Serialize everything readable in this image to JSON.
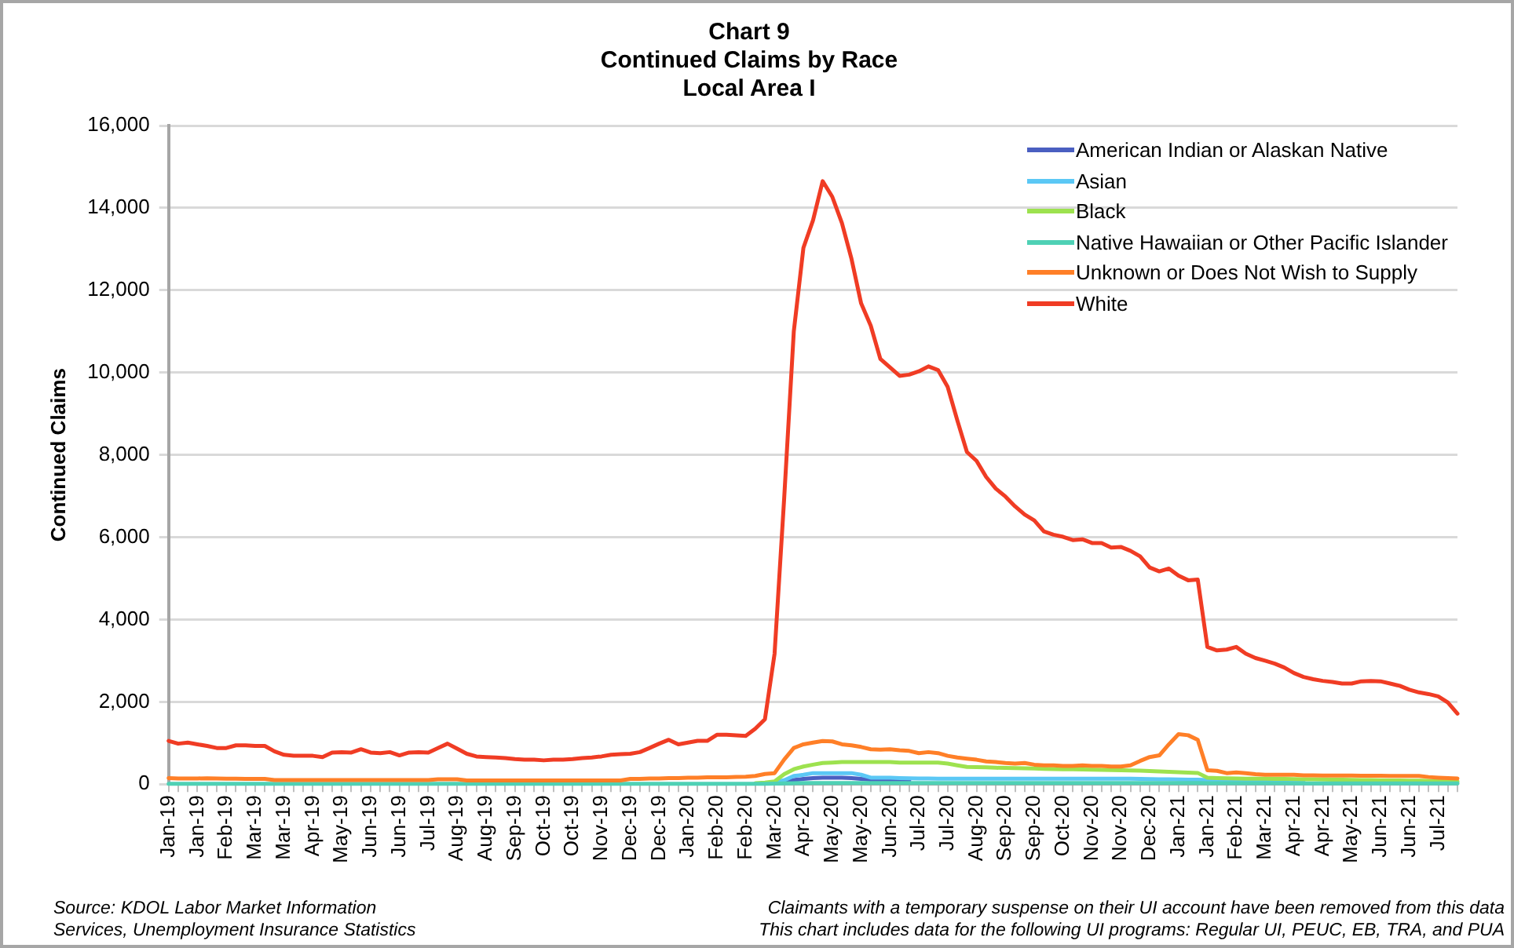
{
  "chart_data": {
    "type": "line",
    "title": "Chart 9\nContinued Claims by Race\nLocal Area I",
    "ylabel": "Continued Claims",
    "categories": [
      "Jan-19",
      null,
      null,
      "Jan-19",
      null,
      null,
      "Feb-19",
      null,
      null,
      "Mar-19",
      null,
      null,
      "Mar-19",
      null,
      null,
      "Apr-19",
      null,
      null,
      "May-19",
      null,
      null,
      "Jun-19",
      null,
      null,
      "Jun-19",
      null,
      null,
      "Jul-19",
      null,
      null,
      "Aug-19",
      null,
      null,
      "Aug-19",
      null,
      null,
      "Sep-19",
      null,
      null,
      "Oct-19",
      null,
      null,
      "Oct-19",
      null,
      null,
      "Nov-19",
      null,
      null,
      "Dec-19",
      null,
      null,
      "Dec-19",
      null,
      null,
      "Jan-20",
      null,
      null,
      "Feb-20",
      null,
      null,
      "Feb-20",
      null,
      null,
      "Mar-20",
      null,
      null,
      "Apr-20",
      null,
      null,
      "May-20",
      null,
      null,
      "May-20",
      null,
      null,
      "Jun-20",
      null,
      null,
      "Jul-20",
      null,
      null,
      "Jul-20",
      null,
      null,
      "Aug-20",
      null,
      null,
      "Sep-20",
      null,
      null,
      "Sep-20",
      null,
      null,
      "Oct-20",
      null,
      null,
      "Nov-20",
      null,
      null,
      "Nov-20",
      null,
      null,
      "Dec-20",
      null,
      null,
      "Jan-21",
      null,
      null,
      "Jan-21",
      null,
      null,
      "Feb-21",
      null,
      null,
      "Mar-21",
      null,
      null,
      "Apr-21",
      null,
      null,
      "Apr-21",
      null,
      null,
      "May-21",
      null,
      null,
      "Jun-21",
      null,
      null,
      "Jun-21",
      null,
      null,
      "Jul-21",
      null,
      null
    ],
    "series": [
      {
        "name": "American Indian or Alaskan Native",
        "color": "#4a5fc1",
        "values": [
          null,
          null,
          null,
          null,
          null,
          null,
          null,
          null,
          null,
          null,
          null,
          null,
          null,
          null,
          null,
          null,
          null,
          null,
          null,
          null,
          null,
          null,
          null,
          null,
          null,
          null,
          null,
          null,
          null,
          null,
          null,
          null,
          null,
          null,
          null,
          null,
          null,
          null,
          null,
          null,
          null,
          null,
          null,
          null,
          null,
          null,
          null,
          null,
          null,
          null,
          null,
          null,
          null,
          null,
          null,
          null,
          null,
          null,
          null,
          null,
          null,
          null,
          null,
          null,
          50,
          100,
          130,
          150,
          160,
          160,
          160,
          150,
          130,
          110,
          100,
          95,
          90,
          90,
          null,
          null,
          null,
          null,
          null,
          null,
          null,
          null,
          null,
          null,
          null,
          null,
          null,
          null,
          null,
          null,
          null,
          null,
          null,
          null,
          null,
          null,
          null,
          null,
          null,
          null,
          null,
          null,
          null,
          null,
          null,
          null,
          null,
          null,
          null,
          null,
          null,
          null,
          null,
          null,
          null,
          null,
          null,
          null,
          null,
          null,
          null,
          null,
          null,
          null,
          null,
          null,
          null,
          null,
          null,
          null,
          null
        ]
      },
      {
        "name": "Asian",
        "color": "#5bc8f5",
        "values": [
          null,
          null,
          null,
          null,
          null,
          null,
          null,
          null,
          null,
          null,
          null,
          null,
          null,
          null,
          null,
          null,
          null,
          null,
          null,
          null,
          null,
          null,
          null,
          null,
          null,
          null,
          null,
          null,
          null,
          null,
          null,
          null,
          null,
          null,
          null,
          null,
          null,
          null,
          null,
          null,
          null,
          null,
          null,
          null,
          null,
          null,
          null,
          null,
          null,
          null,
          null,
          null,
          null,
          null,
          null,
          null,
          null,
          null,
          null,
          null,
          null,
          null,
          30,
          50,
          95,
          200,
          230,
          270,
          270,
          270,
          270,
          270,
          230,
          160,
          160,
          160,
          150,
          145,
          140,
          140,
          135,
          135,
          135,
          135,
          135,
          135,
          135,
          135,
          135,
          135,
          135,
          135,
          135,
          135,
          135,
          135,
          135,
          135,
          135,
          135,
          135,
          130,
          125,
          120,
          120,
          115,
          110,
          110,
          100,
          95,
          95,
          95,
          95,
          95,
          95,
          95,
          95,
          95,
          90,
          null,
          null,
          null,
          null,
          null,
          null,
          null,
          null,
          null,
          null,
          null,
          null,
          null,
          null,
          null,
          null
        ]
      },
      {
        "name": "Black",
        "color": "#9de24f",
        "values": [
          null,
          null,
          null,
          null,
          null,
          null,
          null,
          null,
          null,
          null,
          null,
          null,
          null,
          null,
          null,
          null,
          null,
          null,
          null,
          null,
          null,
          null,
          null,
          null,
          null,
          null,
          null,
          null,
          null,
          null,
          null,
          null,
          null,
          null,
          null,
          null,
          null,
          null,
          null,
          null,
          null,
          null,
          null,
          null,
          null,
          null,
          null,
          null,
          null,
          null,
          null,
          null,
          null,
          null,
          null,
          null,
          null,
          null,
          null,
          null,
          null,
          25,
          40,
          70,
          245,
          365,
          430,
          475,
          515,
          525,
          540,
          540,
          540,
          540,
          540,
          540,
          525,
          525,
          525,
          525,
          525,
          500,
          460,
          420,
          415,
          410,
          400,
          395,
          390,
          385,
          380,
          375,
          370,
          365,
          365,
          360,
          355,
          350,
          345,
          340,
          335,
          330,
          320,
          310,
          300,
          290,
          280,
          275,
          160,
          150,
          145,
          140,
          135,
          135,
          135,
          130,
          130,
          125,
          120,
          120,
          115,
          110,
          110,
          105,
          100,
          100,
          95,
          90,
          90,
          85,
          85,
          80,
          75,
          70,
          70
        ]
      },
      {
        "name": "Native Hawaiian or Other Pacific Islander",
        "color": "#4fd1b5",
        "values": [
          10,
          10,
          10,
          10,
          10,
          10,
          10,
          10,
          10,
          10,
          10,
          10,
          10,
          10,
          10,
          10,
          10,
          10,
          10,
          10,
          10,
          10,
          10,
          10,
          10,
          10,
          10,
          10,
          10,
          10,
          10,
          10,
          10,
          10,
          10,
          10,
          10,
          10,
          10,
          10,
          10,
          10,
          10,
          10,
          10,
          10,
          10,
          10,
          10,
          10,
          10,
          10,
          10,
          10,
          10,
          10,
          10,
          10,
          10,
          10,
          10,
          10,
          10,
          15,
          20,
          25,
          30,
          30,
          30,
          30,
          30,
          30,
          30,
          30,
          30,
          30,
          30,
          30,
          30,
          30,
          30,
          30,
          30,
          30,
          30,
          30,
          30,
          30,
          30,
          30,
          30,
          30,
          30,
          30,
          30,
          30,
          30,
          30,
          30,
          30,
          30,
          30,
          30,
          30,
          30,
          30,
          30,
          30,
          25,
          25,
          25,
          25,
          25,
          25,
          25,
          25,
          25,
          20,
          20,
          20,
          20,
          20,
          20,
          20,
          20,
          20,
          20,
          20,
          20,
          20,
          20,
          20,
          20,
          20,
          20
        ]
      },
      {
        "name": "Unknown or Does Not Wish to Supply",
        "color": "#ff7f27",
        "values": [
          150,
          140,
          140,
          140,
          145,
          140,
          135,
          135,
          130,
          130,
          130,
          100,
          100,
          100,
          100,
          100,
          100,
          100,
          100,
          100,
          100,
          100,
          100,
          100,
          100,
          100,
          100,
          100,
          120,
          120,
          120,
          90,
          90,
          90,
          90,
          90,
          90,
          90,
          90,
          90,
          90,
          90,
          90,
          90,
          90,
          90,
          90,
          90,
          130,
          130,
          140,
          140,
          150,
          150,
          160,
          160,
          170,
          170,
          170,
          175,
          180,
          200,
          250,
          270,
          600,
          880,
          970,
          1010,
          1050,
          1040,
          970,
          945,
          905,
          850,
          840,
          850,
          825,
          810,
          755,
          780,
          755,
          690,
          650,
          620,
          595,
          555,
          540,
          515,
          500,
          515,
          475,
          460,
          460,
          445,
          445,
          460,
          445,
          445,
          430,
          430,
          460,
          565,
          660,
          700,
          970,
          1215,
          1190,
          1080,
          340,
          325,
          270,
          285,
          270,
          245,
          230,
          230,
          230,
          230,
          215,
          215,
          210,
          210,
          210,
          210,
          205,
          205,
          205,
          200,
          200,
          200,
          200,
          175,
          160,
          150,
          140
        ]
      },
      {
        "name": "White",
        "color": "#f03c24",
        "values": [
          1053,
          985,
          1010,
          970,
          930,
          880,
          880,
          945,
          945,
          930,
          930,
          800,
          715,
          690,
          690,
          690,
          660,
          770,
          780,
          770,
          850,
          770,
          755,
          780,
          700,
          770,
          780,
          770,
          880,
          985,
          865,
          740,
          675,
          660,
          650,
          635,
          610,
          595,
          595,
          580,
          595,
          595,
          610,
          635,
          650,
          675,
          715,
          730,
          740,
          780,
          880,
          985,
          1080,
          970,
          1010,
          1053,
          1053,
          1200,
          1200,
          1190,
          1175,
          1350,
          1580,
          3170,
          6950,
          11000,
          13030,
          13700,
          14650,
          14270,
          13635,
          12760,
          11680,
          11140,
          10330,
          10125,
          9920,
          9950,
          10030,
          10150,
          10060,
          9650,
          8840,
          8070,
          7855,
          7465,
          7180,
          6990,
          6750,
          6550,
          6410,
          6140,
          6060,
          6010,
          5930,
          5950,
          5860,
          5860,
          5750,
          5765,
          5670,
          5535,
          5265,
          5170,
          5240,
          5065,
          4955,
          4970,
          3335,
          3250,
          3270,
          3335,
          3170,
          3065,
          3000,
          2930,
          2835,
          2700,
          2605,
          2550,
          2510,
          2485,
          2445,
          2445,
          2500,
          2510,
          2500,
          2445,
          2390,
          2295,
          2230,
          2190,
          2135,
          1985,
          1715
        ]
      }
    ],
    "ylim": [
      0,
      16000
    ],
    "yticks": [
      {
        "value": 0,
        "label": "0"
      },
      {
        "value": 2000,
        "label": "2,000"
      },
      {
        "value": 4000,
        "label": "4,000"
      },
      {
        "value": 6000,
        "label": "6,000"
      },
      {
        "value": 8000,
        "label": "8,000"
      },
      {
        "value": 10000,
        "label": "10,000"
      },
      {
        "value": 12000,
        "label": "12,000"
      },
      {
        "value": 14000,
        "label": "14,000"
      },
      {
        "value": 16000,
        "label": "16,000"
      }
    ],
    "grid": "y",
    "legend": "top right",
    "marker": "none",
    "line_style": "solid",
    "annotations": [
      "Source: KDOL Labor Market Information\nServices, Unemployment Insurance Statistics",
      "Claimants with a temporary suspense on their UI account have been removed from this data\nThis chart includes data for the following UI programs: Regular UI, PEUC, EB, TRA, and PUA"
    ]
  }
}
